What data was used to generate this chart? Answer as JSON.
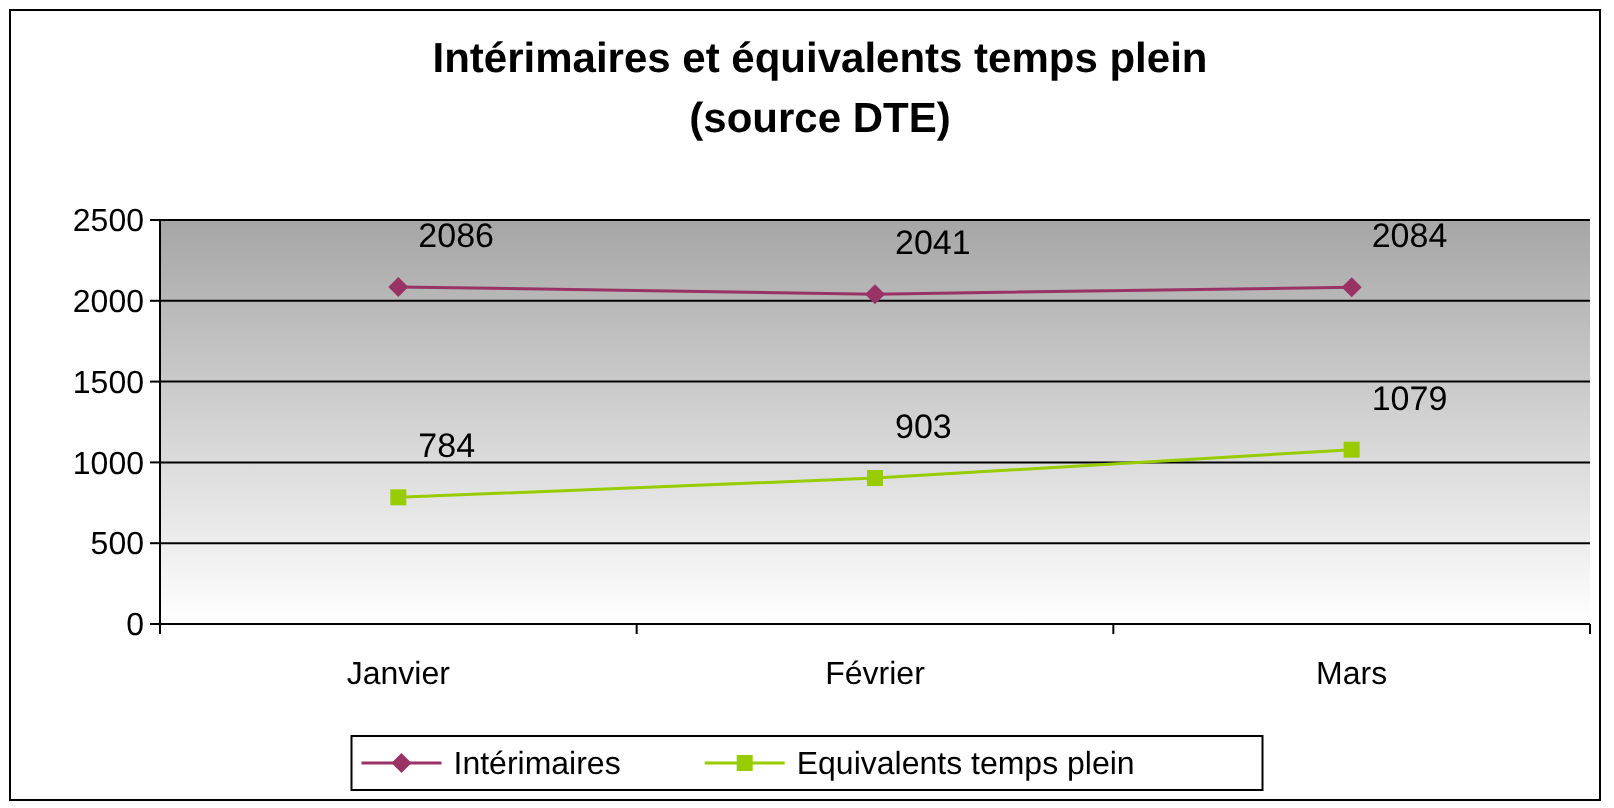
{
  "chart_data": {
    "type": "line",
    "title": "Intérimaires et équivalents temps plein\n(source DTE)",
    "categories": [
      "Janvier",
      "Février",
      "Mars"
    ],
    "series": [
      {
        "name": "Intérimaires",
        "color": "#993366",
        "values": [
          2086,
          2041,
          2084
        ],
        "marker": "diamond"
      },
      {
        "name": "Equivalents temps plein",
        "color": "#99cc00",
        "values": [
          784,
          903,
          1079
        ],
        "marker": "square"
      }
    ],
    "ylim": [
      0,
      2500
    ],
    "yticks": [
      0,
      500,
      1000,
      1500,
      2000,
      2500
    ],
    "grid": "y",
    "legend": "bottom",
    "data_labels": true
  }
}
